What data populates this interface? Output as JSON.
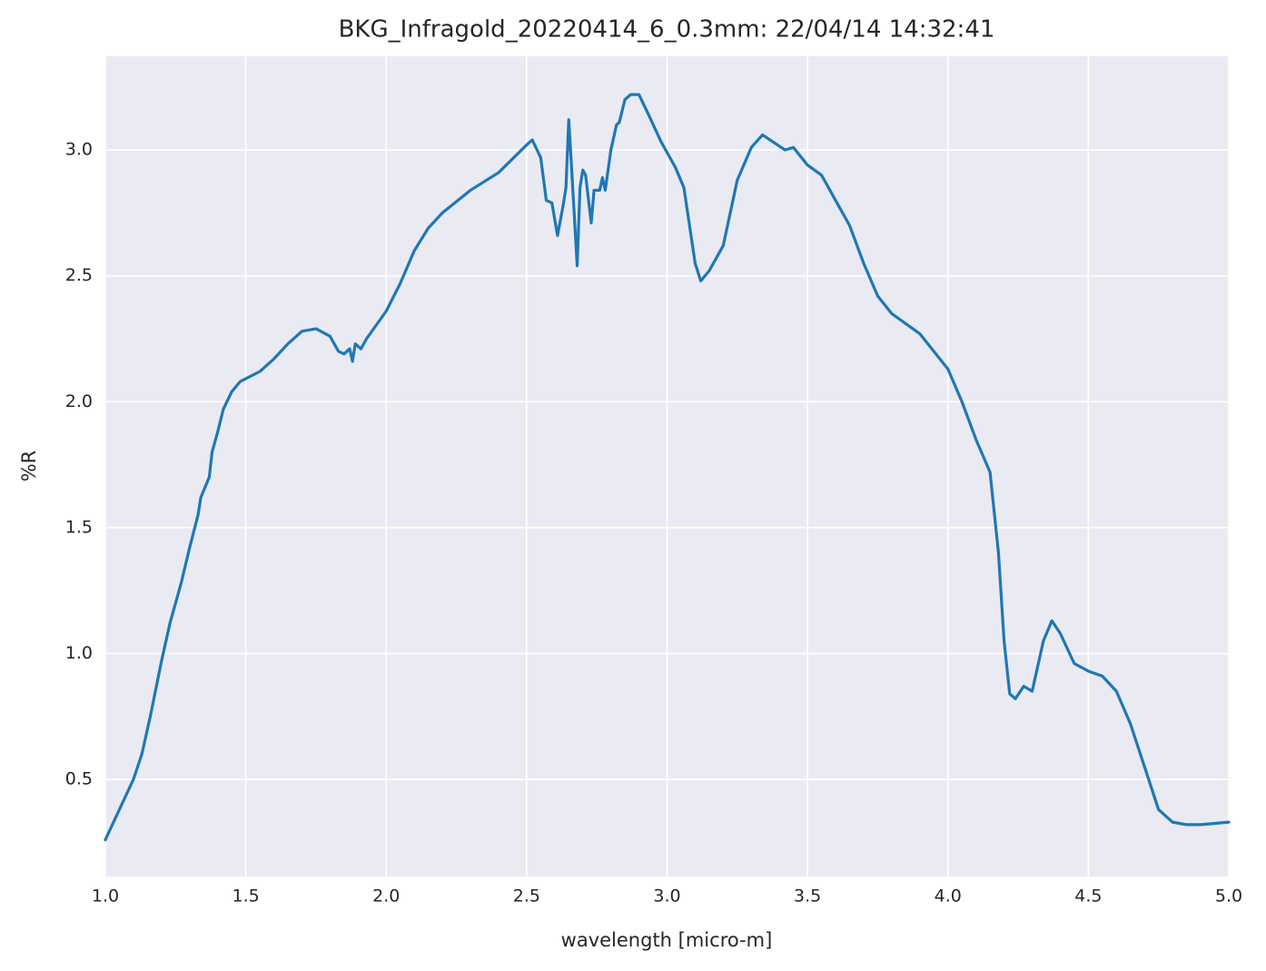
{
  "chart_data": {
    "type": "line",
    "title": "BKG_Infragold_20220414_6_0.3mm:  22/04/14 14:32:41",
    "xlabel": "wavelength [micro-m]",
    "ylabel": "%R",
    "x": [
      1.0,
      1.05,
      1.1,
      1.13,
      1.16,
      1.2,
      1.23,
      1.27,
      1.3,
      1.33,
      1.34,
      1.37,
      1.38,
      1.4,
      1.42,
      1.45,
      1.48,
      1.55,
      1.6,
      1.65,
      1.7,
      1.75,
      1.8,
      1.83,
      1.85,
      1.87,
      1.88,
      1.89,
      1.91,
      1.93,
      2.0,
      2.05,
      2.1,
      2.15,
      2.2,
      2.3,
      2.4,
      2.5,
      2.52,
      2.55,
      2.57,
      2.59,
      2.61,
      2.63,
      2.64,
      2.65,
      2.66,
      2.68,
      2.69,
      2.7,
      2.71,
      2.73,
      2.74,
      2.76,
      2.77,
      2.78,
      2.8,
      2.82,
      2.83,
      2.85,
      2.87,
      2.9,
      2.93,
      2.98,
      3.03,
      3.06,
      3.1,
      3.12,
      3.15,
      3.2,
      3.25,
      3.3,
      3.34,
      3.38,
      3.42,
      3.45,
      3.5,
      3.55,
      3.6,
      3.65,
      3.7,
      3.75,
      3.8,
      3.9,
      4.0,
      4.05,
      4.1,
      4.15,
      4.18,
      4.2,
      4.22,
      4.24,
      4.27,
      4.3,
      4.34,
      4.37,
      4.4,
      4.45,
      4.5,
      4.55,
      4.6,
      4.65,
      4.7,
      4.75,
      4.8,
      4.85,
      4.9,
      5.0
    ],
    "values": [
      0.26,
      0.38,
      0.5,
      0.6,
      0.75,
      0.97,
      1.12,
      1.28,
      1.42,
      1.55,
      1.62,
      1.7,
      1.8,
      1.88,
      1.97,
      2.04,
      2.08,
      2.12,
      2.17,
      2.23,
      2.28,
      2.29,
      2.26,
      2.2,
      2.19,
      2.21,
      2.16,
      2.23,
      2.21,
      2.25,
      2.36,
      2.47,
      2.6,
      2.69,
      2.75,
      2.84,
      2.91,
      3.02,
      3.04,
      2.97,
      2.8,
      2.79,
      2.66,
      2.78,
      2.85,
      3.12,
      2.93,
      2.54,
      2.85,
      2.92,
      2.9,
      2.71,
      2.84,
      2.84,
      2.89,
      2.84,
      3.0,
      3.1,
      3.11,
      3.2,
      3.22,
      3.22,
      3.15,
      3.03,
      2.93,
      2.85,
      2.55,
      2.48,
      2.52,
      2.62,
      2.88,
      3.01,
      3.06,
      3.03,
      3.0,
      3.01,
      2.94,
      2.9,
      2.8,
      2.7,
      2.55,
      2.42,
      2.35,
      2.27,
      2.13,
      2.0,
      1.85,
      1.72,
      1.4,
      1.05,
      0.84,
      0.82,
      0.87,
      0.85,
      1.05,
      1.13,
      1.08,
      0.96,
      0.93,
      0.91,
      0.85,
      0.72,
      0.55,
      0.38,
      0.33,
      0.32,
      0.32,
      0.33
    ],
    "color": "#1f77b4",
    "xlim": [
      1.0,
      5.0
    ],
    "xticks": [
      {
        "value": 1.0,
        "label": "1.0"
      },
      1.5,
      {
        "value": 2.0,
        "label": "2.0"
      },
      2.5,
      {
        "value": 3.0,
        "label": "3.0"
      },
      3.5,
      {
        "value": 4.0,
        "label": "4.0"
      },
      4.5,
      {
        "value": 5.0,
        "label": "5.0"
      }
    ],
    "ylim": [
      0.114,
      3.372
    ],
    "yticks": [
      0.5,
      {
        "value": 1.0,
        "label": "1.0"
      },
      1.5,
      {
        "value": 2.0,
        "label": "2.0"
      },
      2.5,
      {
        "value": 3.0,
        "label": "3.0"
      }
    ],
    "grid": true
  }
}
